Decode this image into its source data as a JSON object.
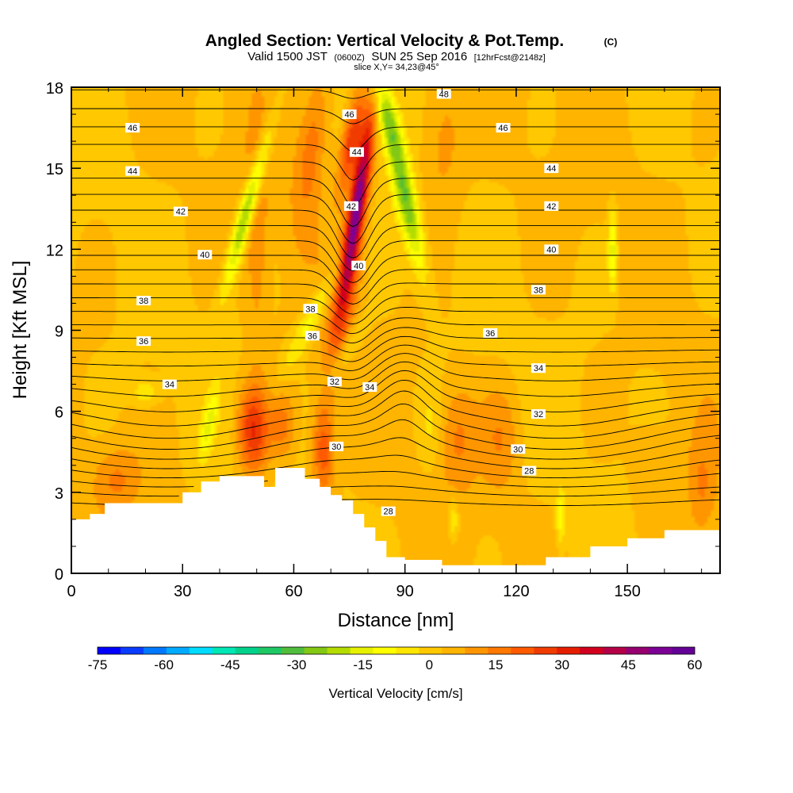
{
  "chart_data": {
    "type": "heatmap",
    "title": "Angled Section: Vertical Velocity & Pot.Temp.",
    "title_unit": "(C)",
    "subtitle_parts": {
      "a": "Valid 1500 JST",
      "b": "(0600Z)",
      "c": "SUN 25 Sep 2016",
      "d": "[12hrFcst@2148z]"
    },
    "slice": "slice X,Y= 34,23@45°",
    "xlabel": "Distance [nm]",
    "ylabel": "Height [Kft MSL]",
    "xlim": [
      0,
      175
    ],
    "ylim": [
      0,
      18
    ],
    "x_ticks": [
      "0",
      "30",
      "60",
      "90",
      "120",
      "150"
    ],
    "x_tick_values": [
      0,
      30,
      60,
      90,
      120,
      150
    ],
    "y_ticks": [
      "0",
      "3",
      "6",
      "9",
      "12",
      "15",
      "18"
    ],
    "y_tick_values": [
      0,
      3,
      6,
      9,
      12,
      15,
      18
    ],
    "colorbar": {
      "label": "Vertical Velocity [cm/s]",
      "tick_labels": [
        "-75",
        "-60",
        "-45",
        "-30",
        "-15",
        "0",
        "15",
        "30",
        "45",
        "60"
      ],
      "tick_values": [
        -75,
        -60,
        -45,
        -30,
        -15,
        0,
        15,
        30,
        45,
        60
      ],
      "range": [
        -75,
        60
      ],
      "colors": [
        "#0000ff",
        "#0a3cff",
        "#0078ff",
        "#00aaff",
        "#00dcff",
        "#00e6b4",
        "#00d28c",
        "#1ec864",
        "#50be3c",
        "#82c814",
        "#b4dc00",
        "#e6f000",
        "#ffff00",
        "#ffe600",
        "#ffc800",
        "#ffb400",
        "#ff9600",
        "#ff7800",
        "#ff5a00",
        "#f03c00",
        "#e61e00",
        "#d2001e",
        "#b40046",
        "#96006e",
        "#7d0096",
        "#640096"
      ]
    },
    "terrain_kft": [
      [
        0,
        2.0
      ],
      [
        5,
        2.2
      ],
      [
        9,
        2.6
      ],
      [
        16,
        2.6
      ],
      [
        27,
        2.6
      ],
      [
        30,
        3.0
      ],
      [
        35,
        3.4
      ],
      [
        40,
        3.6
      ],
      [
        48,
        3.6
      ],
      [
        52,
        3.2
      ],
      [
        55,
        3.9
      ],
      [
        60,
        3.9
      ],
      [
        63,
        3.5
      ],
      [
        67,
        3.2
      ],
      [
        70,
        2.9
      ],
      [
        73,
        2.7
      ],
      [
        76,
        2.2
      ],
      [
        79,
        1.7
      ],
      [
        82,
        1.2
      ],
      [
        85,
        0.6
      ],
      [
        90,
        0.5
      ],
      [
        100,
        0.3
      ],
      [
        110,
        0.3
      ],
      [
        116,
        0.3
      ],
      [
        128,
        0.6
      ],
      [
        140,
        1.0
      ],
      [
        150,
        1.3
      ],
      [
        160,
        1.6
      ],
      [
        175,
        1.6
      ]
    ],
    "velocity_features": [
      {
        "x": 77,
        "y": 13.5,
        "sx": 2.2,
        "sy": 3.4,
        "tilt": 0.25,
        "w": 50
      },
      {
        "x": 75.5,
        "y": 16.0,
        "sx": 2.5,
        "sy": 1.8,
        "tilt": 0.3,
        "w": 25
      },
      {
        "x": 73,
        "y": 9.5,
        "sx": 4,
        "sy": 3,
        "tilt": 0.3,
        "w": 12
      },
      {
        "x": 65,
        "y": 16,
        "sx": 4,
        "sy": 3,
        "tilt": 0.2,
        "w": 14
      },
      {
        "x": 49,
        "y": 5.3,
        "sx": 4,
        "sy": 1.6,
        "tilt": 0,
        "w": 26
      },
      {
        "x": 68,
        "y": 4.5,
        "sx": 3,
        "sy": 1.8,
        "tilt": 0,
        "w": 20
      },
      {
        "x": 57,
        "y": 5.5,
        "sx": 3.5,
        "sy": 1.2,
        "tilt": 0,
        "w": 12
      },
      {
        "x": 50,
        "y": 12.5,
        "sx": 3,
        "sy": 4,
        "tilt": 0,
        "w": 10
      },
      {
        "x": 100,
        "y": 16,
        "sx": 6,
        "sy": 3,
        "tilt": 0,
        "w": 9
      },
      {
        "x": 104,
        "y": 5,
        "sx": 5,
        "sy": 2,
        "tilt": 0,
        "w": 10
      },
      {
        "x": 116,
        "y": 5,
        "sx": 5,
        "sy": 2,
        "tilt": 0,
        "w": 9
      },
      {
        "x": 170,
        "y": 3,
        "sx": 4,
        "sy": 2,
        "tilt": 0,
        "w": 10
      },
      {
        "x": 12,
        "y": 3.5,
        "sx": 6,
        "sy": 1.2,
        "tilt": 0,
        "w": 10
      },
      {
        "x": 47.5,
        "y": 13.5,
        "sx": 2.2,
        "sy": 2.8,
        "tilt": 0.45,
        "w": -30
      },
      {
        "x": 65,
        "y": 9.5,
        "sx": 3,
        "sy": 2,
        "tilt": 0.8,
        "w": -14
      },
      {
        "x": 74,
        "y": 8.2,
        "sx": 3,
        "sy": 1.2,
        "tilt": 0.8,
        "w": -10
      },
      {
        "x": 90,
        "y": 14.0,
        "sx": 2.8,
        "sy": 2.8,
        "tilt": -0.35,
        "w": -30
      },
      {
        "x": 85,
        "y": 17,
        "sx": 3,
        "sy": 1.5,
        "tilt": -0.4,
        "w": -20
      },
      {
        "x": 37,
        "y": 5.5,
        "sx": 1.6,
        "sy": 1.2,
        "tilt": 0.3,
        "w": -14
      },
      {
        "x": 20,
        "y": 6.7,
        "sx": 4,
        "sy": 0.5,
        "tilt": 0,
        "w": -10
      },
      {
        "x": 146,
        "y": 12.0,
        "sx": 1.2,
        "sy": 1.5,
        "tilt": 0,
        "w": -18
      },
      {
        "x": 132,
        "y": 2.1,
        "sx": 1.2,
        "sy": 1.0,
        "tilt": 0,
        "w": -14
      },
      {
        "x": 103,
        "y": 2.0,
        "sx": 1.5,
        "sy": 0.8,
        "tilt": 0,
        "w": -12
      },
      {
        "x": 97,
        "y": 5.5,
        "sx": 3,
        "sy": 1.5,
        "tilt": 0,
        "w": -6
      },
      {
        "x": 156,
        "y": 4,
        "sx": 6,
        "sy": 2,
        "tilt": 0,
        "w": 5
      }
    ],
    "contour_labels": [
      {
        "text": "48",
        "x": 100.5,
        "y": 17.75
      },
      {
        "text": "46",
        "x": 16.5,
        "y": 16.5
      },
      {
        "text": "46",
        "x": 75,
        "y": 17.0
      },
      {
        "text": "46",
        "x": 116.5,
        "y": 16.5
      },
      {
        "text": "44",
        "x": 16.5,
        "y": 14.9
      },
      {
        "text": "44",
        "x": 77,
        "y": 15.6
      },
      {
        "text": "44",
        "x": 129.5,
        "y": 15.0
      },
      {
        "text": "42",
        "x": 29.5,
        "y": 13.4
      },
      {
        "text": "42",
        "x": 75.5,
        "y": 13.6
      },
      {
        "text": "42",
        "x": 129.5,
        "y": 13.6
      },
      {
        "text": "40",
        "x": 36.0,
        "y": 11.8
      },
      {
        "text": "40",
        "x": 77.5,
        "y": 11.4
      },
      {
        "text": "40",
        "x": 129.5,
        "y": 12.0
      },
      {
        "text": "38",
        "x": 19.5,
        "y": 10.1
      },
      {
        "text": "38",
        "x": 64.5,
        "y": 9.8
      },
      {
        "text": "38",
        "x": 126,
        "y": 10.5
      },
      {
        "text": "36",
        "x": 19.5,
        "y": 8.6
      },
      {
        "text": "36",
        "x": 65,
        "y": 8.8
      },
      {
        "text": "36",
        "x": 113,
        "y": 8.9
      },
      {
        "text": "34",
        "x": 26.5,
        "y": 7.0
      },
      {
        "text": "34",
        "x": 80.5,
        "y": 6.9
      },
      {
        "text": "34",
        "x": 126,
        "y": 7.6
      },
      {
        "text": "32",
        "x": 71,
        "y": 7.1
      },
      {
        "text": "32",
        "x": 126,
        "y": 5.9
      },
      {
        "text": "30",
        "x": 71.5,
        "y": 4.7
      },
      {
        "text": "30",
        "x": 120.5,
        "y": 4.6
      },
      {
        "text": "28",
        "x": 85.5,
        "y": 2.3
      },
      {
        "text": "28",
        "x": 123.5,
        "y": 3.8
      }
    ]
  }
}
